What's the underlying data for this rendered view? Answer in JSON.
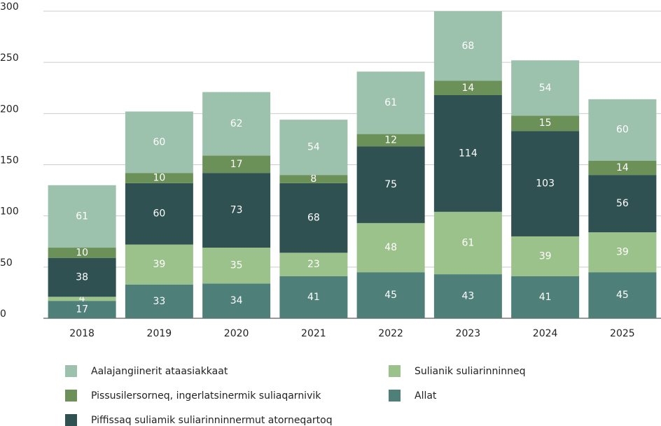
{
  "chart_data": {
    "type": "stacked_bar",
    "categories": [
      "2018",
      "2019",
      "2020",
      "2021",
      "2022",
      "2023",
      "2024",
      "2025"
    ],
    "series": [
      {
        "name": "Allat",
        "color": "#4e8079",
        "values": [
          17,
          33,
          34,
          41,
          45,
          43,
          41,
          45
        ]
      },
      {
        "name": "Sulianik suliarinninneq",
        "color": "#9cc28b",
        "values": [
          4,
          39,
          35,
          23,
          48,
          61,
          39,
          39
        ]
      },
      {
        "name": "Piffissaq suliamik suliarinninnermut atorneqartoq",
        "color": "#2f5152",
        "values": [
          38,
          60,
          73,
          68,
          75,
          114,
          103,
          56
        ]
      },
      {
        "name": "Pissusilersorneq, ingerlatsinermik suliaqarnivik",
        "color": "#6b9159",
        "values": [
          10,
          10,
          17,
          8,
          12,
          14,
          15,
          14
        ]
      },
      {
        "name": "Aalajangiinerit ataasiakkaat",
        "color": "#9cc2ad",
        "values": [
          61,
          60,
          62,
          54,
          61,
          68,
          54,
          60
        ]
      }
    ],
    "ylim": [
      0,
      300
    ],
    "yticks": [
      0,
      50,
      100,
      150,
      200,
      250,
      300
    ],
    "grid": true
  }
}
